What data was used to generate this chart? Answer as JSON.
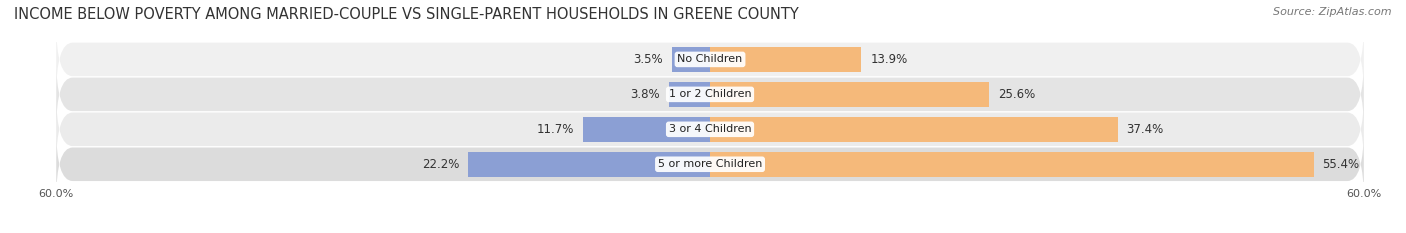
{
  "title": "INCOME BELOW POVERTY AMONG MARRIED-COUPLE VS SINGLE-PARENT HOUSEHOLDS IN GREENE COUNTY",
  "source": "Source: ZipAtlas.com",
  "categories": [
    "5 or more Children",
    "3 or 4 Children",
    "1 or 2 Children",
    "No Children"
  ],
  "married_values": [
    22.2,
    11.7,
    3.8,
    3.5
  ],
  "single_values": [
    55.4,
    37.4,
    25.6,
    13.9
  ],
  "married_labels": [
    "22.2%",
    "11.7%",
    "3.8%",
    "3.5%"
  ],
  "single_labels": [
    "55.4%",
    "37.4%",
    "25.6%",
    "13.9%"
  ],
  "xlim": 60.0,
  "married_color": "#8b9fd4",
  "single_color": "#f5b97a",
  "row_bg_light": "#efefef",
  "row_bg_dark": "#e2e2e2",
  "title_fontsize": 10.5,
  "source_fontsize": 8,
  "value_fontsize": 8.5,
  "category_fontsize": 8,
  "axis_label_fontsize": 8,
  "legend_fontsize": 8.5,
  "bar_height": 0.72,
  "figsize": [
    14.06,
    2.33
  ],
  "dpi": 100
}
